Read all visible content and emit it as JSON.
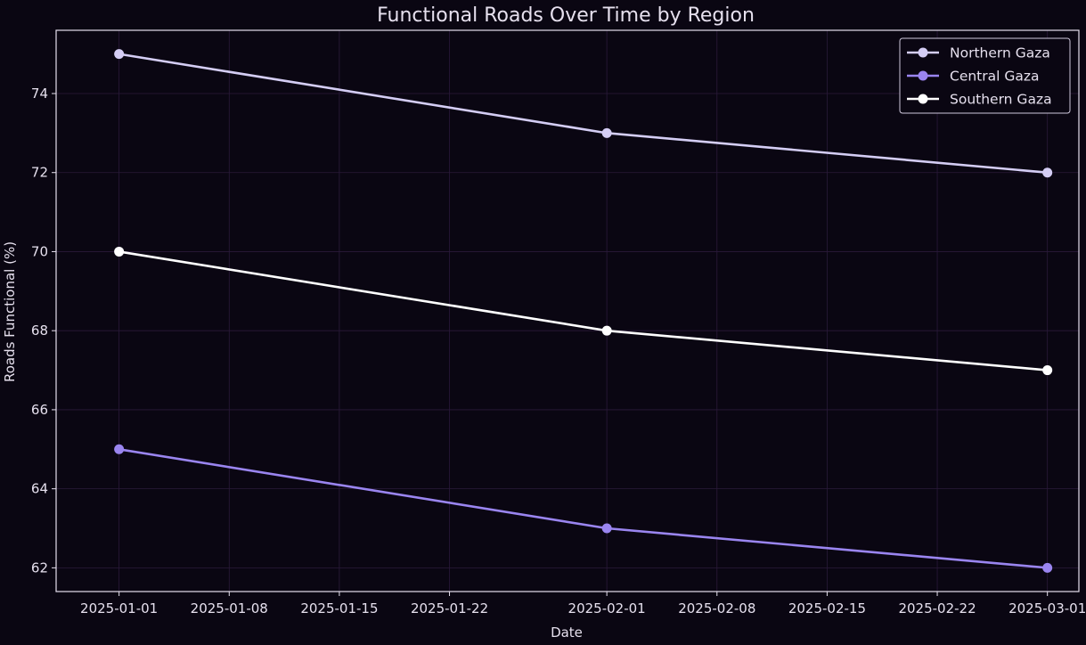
{
  "chart_data": {
    "type": "line",
    "title": "Functional Roads Over Time by Region",
    "xlabel": "Date",
    "ylabel": "Roads Functional (%)",
    "x": [
      "2025-01-01",
      "2025-02-01",
      "2025-03-01"
    ],
    "x_ticks": [
      "2025-01-01",
      "2025-01-08",
      "2025-01-15",
      "2025-01-22",
      "2025-02-01",
      "2025-02-08",
      "2025-02-15",
      "2025-02-22",
      "2025-03-01"
    ],
    "y_ticks": [
      62,
      64,
      66,
      68,
      70,
      72,
      74
    ],
    "ylim": [
      61.4,
      75.6
    ],
    "xlim": [
      "2024-12-28",
      "2025-03-03"
    ],
    "grid": true,
    "legend_position": "top-right",
    "series": [
      {
        "name": "Northern Gaza",
        "values": [
          75,
          73,
          72
        ],
        "color": "#d4cdf4"
      },
      {
        "name": "Central Gaza",
        "values": [
          65,
          63,
          62
        ],
        "color": "#9a85f0"
      },
      {
        "name": "Southern Gaza",
        "values": [
          70,
          68,
          67
        ],
        "color": "#ffffff"
      }
    ],
    "colors": {
      "background": "#0a0612",
      "axes_edge": "#e6e0ee",
      "grid": "#2a1a3a",
      "text": "#e6e0ee"
    }
  }
}
